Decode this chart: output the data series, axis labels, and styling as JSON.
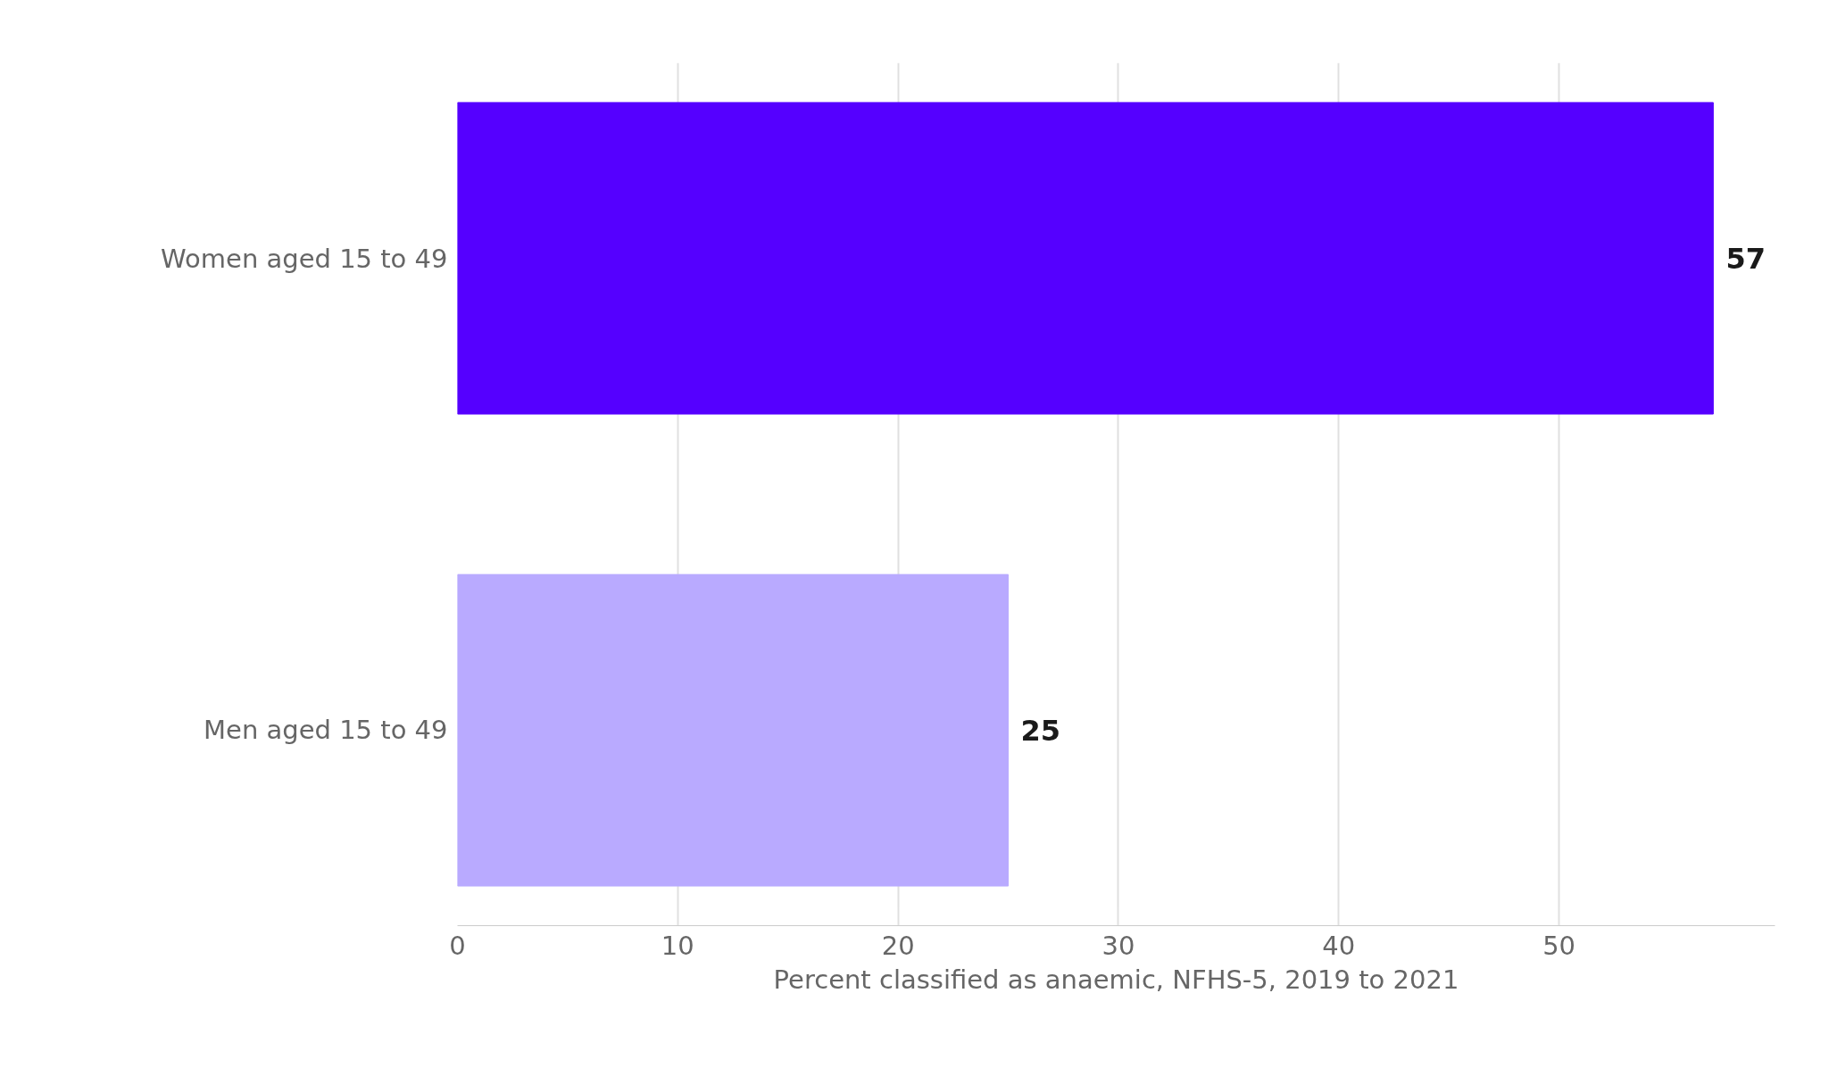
{
  "chart_data": {
    "type": "bar",
    "orientation": "horizontal",
    "categories": [
      "Women aged 15 to 49",
      "Men aged 15 to 49"
    ],
    "values": [
      57,
      25
    ],
    "colors": [
      "#5500ff",
      "#b9aaff"
    ],
    "xlabel": "Percent classified as anaemic, NFHS-5, 2019 to 2021",
    "xlim": [
      0,
      59.8
    ],
    "xticks": [
      0,
      10,
      20,
      30,
      40,
      50
    ],
    "grid": "x",
    "data_labels": true
  }
}
